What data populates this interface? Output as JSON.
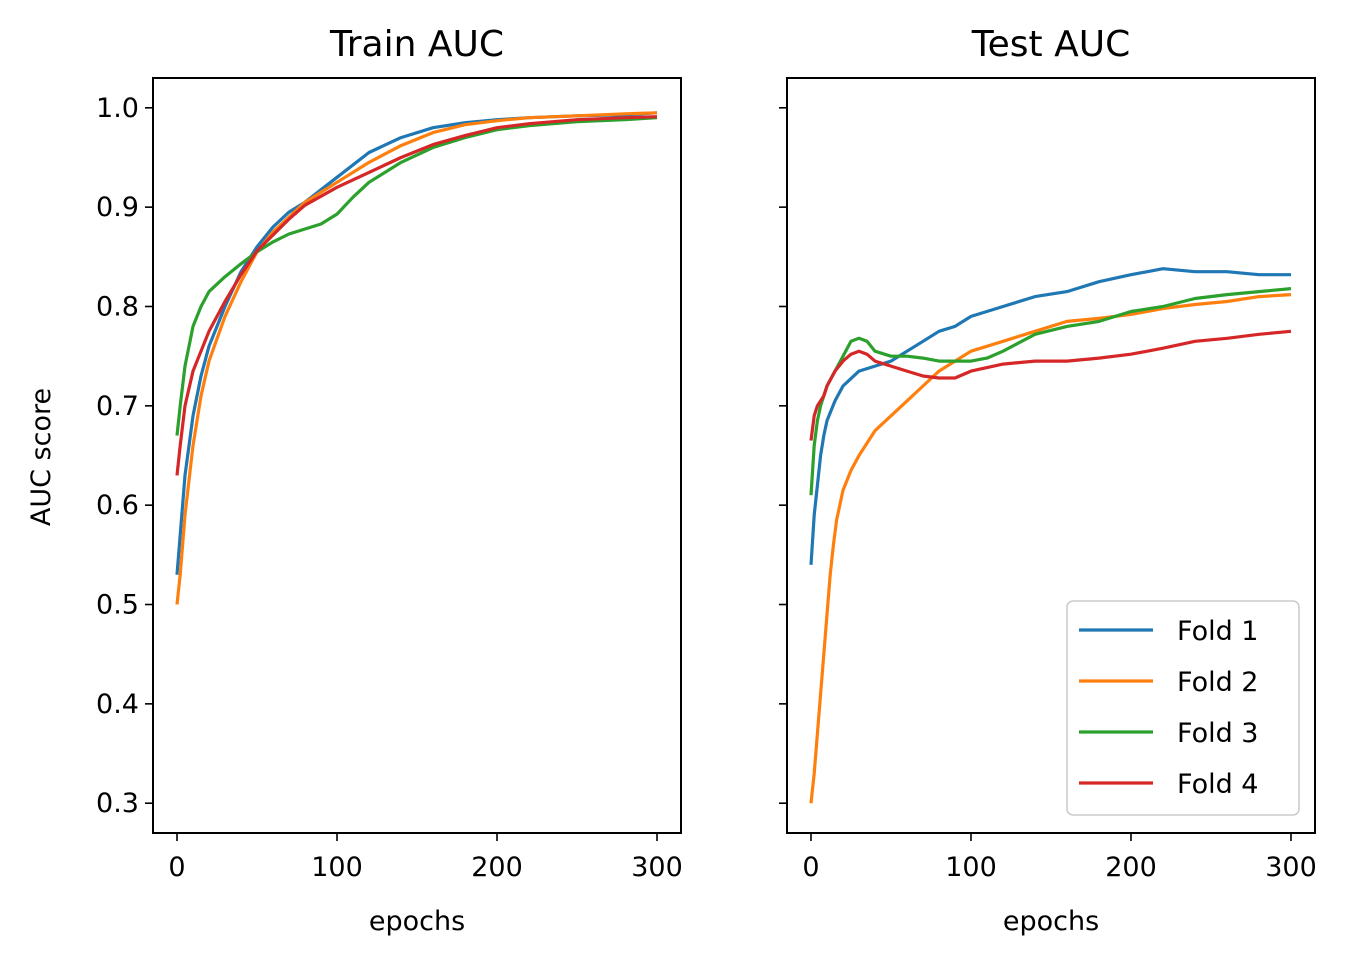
{
  "chart_data": [
    {
      "type": "line",
      "title": "Train AUC",
      "xlabel": "epochs",
      "ylabel": "AUC score",
      "xlim": [
        -15,
        315
      ],
      "ylim": [
        0.27,
        1.03
      ],
      "xticks": [
        "0",
        "100",
        "200",
        "300"
      ],
      "yticks": [
        "0.3",
        "0.4",
        "0.5",
        "0.6",
        "0.7",
        "0.8",
        "0.9",
        "1.0"
      ],
      "series": [
        {
          "name": "Fold 1",
          "color": "#1f77b4",
          "x": [
            0,
            2,
            5,
            10,
            15,
            20,
            30,
            40,
            50,
            60,
            70,
            80,
            100,
            120,
            140,
            160,
            180,
            200,
            220,
            250,
            280,
            300
          ],
          "y": [
            0.53,
            0.57,
            0.63,
            0.69,
            0.73,
            0.76,
            0.8,
            0.835,
            0.86,
            0.88,
            0.895,
            0.905,
            0.93,
            0.955,
            0.97,
            0.98,
            0.985,
            0.988,
            0.99,
            0.992,
            0.993,
            0.995
          ]
        },
        {
          "name": "Fold 2",
          "color": "#ff7f0e",
          "x": [
            0,
            2,
            5,
            10,
            15,
            20,
            30,
            40,
            50,
            60,
            70,
            80,
            100,
            120,
            140,
            160,
            180,
            200,
            220,
            250,
            280,
            300
          ],
          "y": [
            0.5,
            0.53,
            0.59,
            0.66,
            0.71,
            0.745,
            0.79,
            0.825,
            0.855,
            0.875,
            0.89,
            0.905,
            0.925,
            0.945,
            0.962,
            0.975,
            0.983,
            0.987,
            0.99,
            0.992,
            0.994,
            0.995
          ]
        },
        {
          "name": "Fold 3",
          "color": "#2ca02c",
          "x": [
            0,
            2,
            5,
            10,
            15,
            20,
            30,
            40,
            50,
            60,
            70,
            80,
            90,
            100,
            110,
            120,
            140,
            160,
            180,
            200,
            220,
            250,
            280,
            300
          ],
          "y": [
            0.67,
            0.7,
            0.74,
            0.78,
            0.8,
            0.815,
            0.83,
            0.843,
            0.855,
            0.865,
            0.873,
            0.878,
            0.883,
            0.893,
            0.91,
            0.925,
            0.945,
            0.96,
            0.97,
            0.978,
            0.982,
            0.986,
            0.988,
            0.99
          ]
        },
        {
          "name": "Fold 4",
          "color": "#d62728",
          "x": [
            0,
            2,
            5,
            10,
            15,
            20,
            30,
            40,
            50,
            60,
            70,
            80,
            100,
            120,
            140,
            160,
            180,
            200,
            220,
            250,
            280,
            300
          ],
          "y": [
            0.63,
            0.66,
            0.7,
            0.735,
            0.755,
            0.775,
            0.805,
            0.832,
            0.856,
            0.872,
            0.888,
            0.902,
            0.92,
            0.935,
            0.95,
            0.963,
            0.972,
            0.98,
            0.984,
            0.988,
            0.99,
            0.991
          ]
        }
      ]
    },
    {
      "type": "line",
      "title": "Test AUC",
      "xlabel": "epochs",
      "ylabel": "",
      "xlim": [
        -15,
        315
      ],
      "ylim": [
        0.27,
        1.03
      ],
      "xticks": [
        "0",
        "100",
        "200",
        "300"
      ],
      "yticks": [],
      "legend": {
        "position": "bottom-right",
        "entries": [
          "Fold 1",
          "Fold 2",
          "Fold 3",
          "Fold 4"
        ]
      },
      "series": [
        {
          "name": "Fold 1",
          "color": "#1f77b4",
          "x": [
            0,
            2,
            4,
            6,
            8,
            10,
            15,
            20,
            30,
            40,
            50,
            60,
            70,
            80,
            90,
            100,
            120,
            140,
            160,
            180,
            200,
            220,
            240,
            260,
            280,
            300
          ],
          "y": [
            0.54,
            0.59,
            0.62,
            0.65,
            0.67,
            0.685,
            0.705,
            0.72,
            0.735,
            0.74,
            0.745,
            0.755,
            0.765,
            0.775,
            0.78,
            0.79,
            0.8,
            0.81,
            0.815,
            0.825,
            0.832,
            0.838,
            0.835,
            0.835,
            0.832,
            0.832
          ]
        },
        {
          "name": "Fold 2",
          "color": "#ff7f0e",
          "x": [
            0,
            2,
            4,
            6,
            8,
            10,
            12,
            14,
            16,
            18,
            20,
            25,
            30,
            40,
            50,
            60,
            70,
            80,
            90,
            100,
            120,
            140,
            160,
            180,
            200,
            220,
            240,
            260,
            280,
            300
          ],
          "y": [
            0.3,
            0.33,
            0.37,
            0.41,
            0.45,
            0.49,
            0.53,
            0.56,
            0.585,
            0.6,
            0.615,
            0.635,
            0.65,
            0.675,
            0.69,
            0.705,
            0.72,
            0.735,
            0.745,
            0.755,
            0.765,
            0.775,
            0.785,
            0.788,
            0.792,
            0.798,
            0.802,
            0.805,
            0.81,
            0.812
          ]
        },
        {
          "name": "Fold 3",
          "color": "#2ca02c",
          "x": [
            0,
            2,
            4,
            6,
            8,
            10,
            15,
            20,
            25,
            30,
            35,
            40,
            50,
            60,
            70,
            80,
            90,
            100,
            110,
            120,
            140,
            160,
            180,
            200,
            220,
            240,
            260,
            280,
            300
          ],
          "y": [
            0.61,
            0.66,
            0.685,
            0.7,
            0.71,
            0.72,
            0.735,
            0.75,
            0.765,
            0.768,
            0.765,
            0.755,
            0.75,
            0.75,
            0.748,
            0.745,
            0.745,
            0.745,
            0.748,
            0.755,
            0.772,
            0.78,
            0.785,
            0.795,
            0.8,
            0.808,
            0.812,
            0.815,
            0.818
          ]
        },
        {
          "name": "Fold 4",
          "color": "#d62728",
          "x": [
            0,
            2,
            4,
            6,
            8,
            10,
            15,
            20,
            25,
            30,
            35,
            40,
            50,
            60,
            70,
            80,
            90,
            100,
            120,
            140,
            160,
            180,
            200,
            220,
            240,
            260,
            280,
            300
          ],
          "y": [
            0.665,
            0.69,
            0.7,
            0.705,
            0.71,
            0.72,
            0.735,
            0.745,
            0.752,
            0.755,
            0.752,
            0.745,
            0.74,
            0.735,
            0.73,
            0.728,
            0.728,
            0.735,
            0.742,
            0.745,
            0.745,
            0.748,
            0.752,
            0.758,
            0.765,
            0.768,
            0.772,
            0.775
          ]
        }
      ]
    }
  ]
}
